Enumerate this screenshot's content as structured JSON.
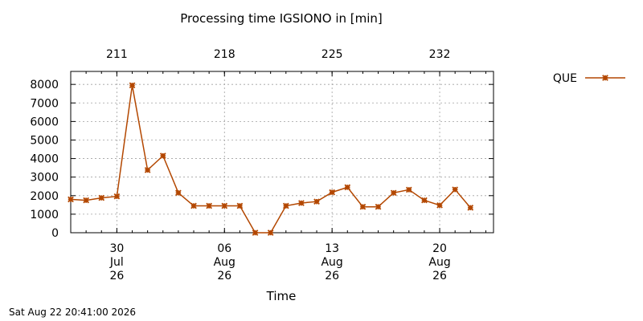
{
  "chart_data": {
    "type": "line",
    "title": "Processing time IGSIONO in [min]",
    "xlabel": "Time",
    "ylabel": "",
    "footer": "Sat Aug 22 20:41:00 2026",
    "ylim": [
      0,
      8700
    ],
    "yticks": [
      0,
      1000,
      2000,
      3000,
      4000,
      5000,
      6000,
      7000,
      8000
    ],
    "xlim": [
      "2026-07-27",
      "2026-08-23 12:00"
    ],
    "xticks": [
      {
        "date": "2026-07-30",
        "lines": [
          "30",
          "Jul",
          "26"
        ]
      },
      {
        "date": "2026-08-06",
        "lines": [
          "06",
          "Aug",
          "26"
        ]
      },
      {
        "date": "2026-08-13",
        "lines": [
          "13",
          "Aug",
          "26"
        ]
      },
      {
        "date": "2026-08-20",
        "lines": [
          "20",
          "Aug",
          "26"
        ]
      }
    ],
    "x2ticks": [
      {
        "date": "2026-07-30",
        "label": "211"
      },
      {
        "date": "2026-08-06",
        "label": "218"
      },
      {
        "date": "2026-08-13",
        "label": "225"
      },
      {
        "date": "2026-08-20",
        "label": "232"
      }
    ],
    "grid": true,
    "legend_position": "top-right",
    "series": [
      {
        "name": "QUE",
        "color": "#b34700",
        "marker": "asterisk",
        "points": [
          {
            "x": "2026-07-27",
            "y": 1800
          },
          {
            "x": "2026-07-28",
            "y": 1750
          },
          {
            "x": "2026-07-29",
            "y": 1880
          },
          {
            "x": "2026-07-30",
            "y": 1960
          },
          {
            "x": "2026-07-31",
            "y": 7950
          },
          {
            "x": "2026-08-01",
            "y": 3380
          },
          {
            "x": "2026-08-02",
            "y": 4150
          },
          {
            "x": "2026-08-03",
            "y": 2150
          },
          {
            "x": "2026-08-04",
            "y": 1450
          },
          {
            "x": "2026-08-05",
            "y": 1450
          },
          {
            "x": "2026-08-06",
            "y": 1450
          },
          {
            "x": "2026-08-07",
            "y": 1450
          },
          {
            "x": "2026-08-08",
            "y": 0
          },
          {
            "x": "2026-08-09",
            "y": 0
          },
          {
            "x": "2026-08-10",
            "y": 1450
          },
          {
            "x": "2026-08-11",
            "y": 1600
          },
          {
            "x": "2026-08-12",
            "y": 1680
          },
          {
            "x": "2026-08-13",
            "y": 2180
          },
          {
            "x": "2026-08-14",
            "y": 2450
          },
          {
            "x": "2026-08-15",
            "y": 1400
          },
          {
            "x": "2026-08-16",
            "y": 1400
          },
          {
            "x": "2026-08-17",
            "y": 2150
          },
          {
            "x": "2026-08-18",
            "y": 2320
          },
          {
            "x": "2026-08-19",
            "y": 1750
          },
          {
            "x": "2026-08-20",
            "y": 1480
          },
          {
            "x": "2026-08-21",
            "y": 2330
          },
          {
            "x": "2026-08-22",
            "y": 1350
          }
        ]
      }
    ]
  }
}
